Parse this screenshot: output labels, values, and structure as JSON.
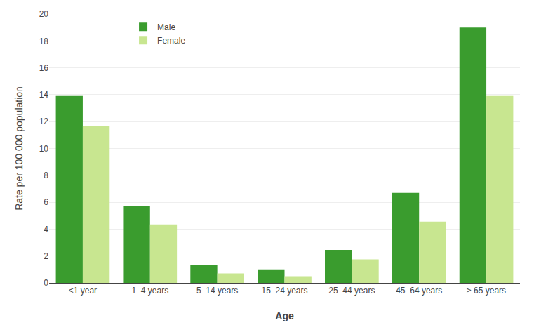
{
  "chart_data": {
    "type": "bar",
    "xlabel": "Age",
    "ylabel": "Rate per 100 000 population",
    "categories": [
      "<1 year",
      "1–4 years",
      "5–14 years",
      "15–24 years",
      "25–44 years",
      "45–64 years",
      "≥ 65 years"
    ],
    "series": [
      {
        "name": "Male",
        "color": "#3a9c2e",
        "values": [
          13.9,
          5.75,
          1.3,
          1.0,
          2.45,
          6.7,
          19.0
        ]
      },
      {
        "name": "Female",
        "color": "#c8e690",
        "values": [
          11.7,
          4.35,
          0.7,
          0.5,
          1.75,
          4.55,
          13.9
        ]
      }
    ],
    "ylim": [
      0,
      20
    ],
    "yticks": [
      0,
      2,
      4,
      6,
      8,
      10,
      12,
      14,
      16,
      18,
      20
    ],
    "grid": true,
    "legend": "upper left"
  }
}
